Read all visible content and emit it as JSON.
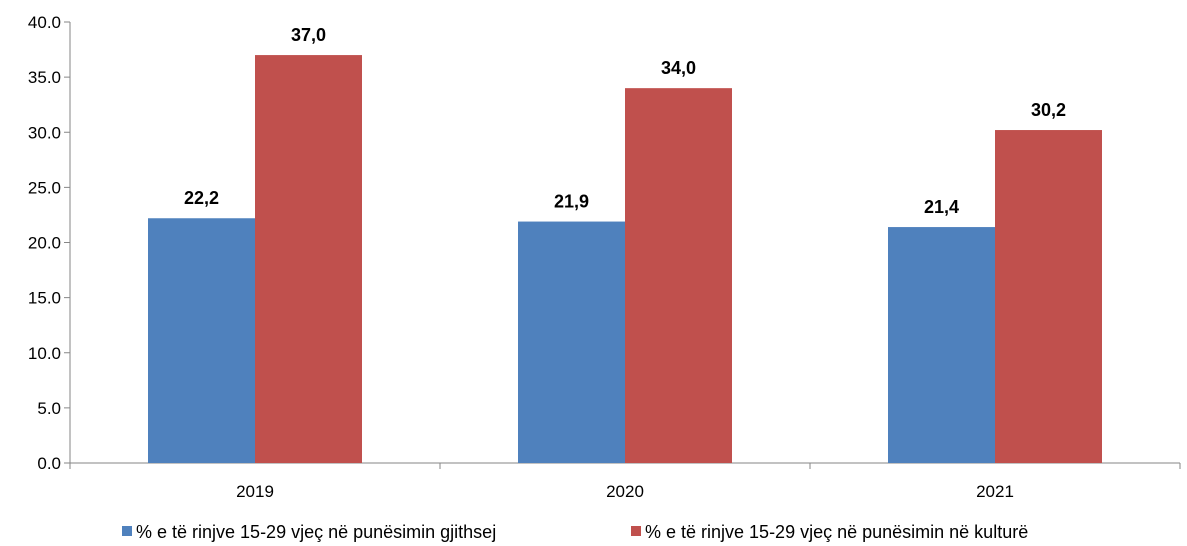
{
  "chart_data": {
    "type": "bar",
    "title": "",
    "xlabel": "",
    "ylabel": "",
    "categories": [
      "2019",
      "2020",
      "2021"
    ],
    "series": [
      {
        "name": "% e të rinjve 15-29 vjeç në punësimin gjithsej",
        "values": [
          22.2,
          21.9,
          21.4
        ],
        "value_labels": [
          "22,2",
          "21,9",
          "21,4"
        ],
        "color": "#4F81BD"
      },
      {
        "name": "% e të rinjve 15-29 vjeç në punësimin në kulturë",
        "values": [
          37.0,
          34.0,
          30.2
        ],
        "value_labels": [
          "37,0",
          "34,0",
          "30,2"
        ],
        "color": "#C0504D"
      }
    ],
    "ylim": [
      0,
      40
    ],
    "yticks": [
      "0.0",
      "5.0",
      "10.0",
      "15.0",
      "20.0",
      "25.0",
      "30.0",
      "35.0",
      "40.0"
    ],
    "grid": false,
    "legend_position": "bottom"
  }
}
